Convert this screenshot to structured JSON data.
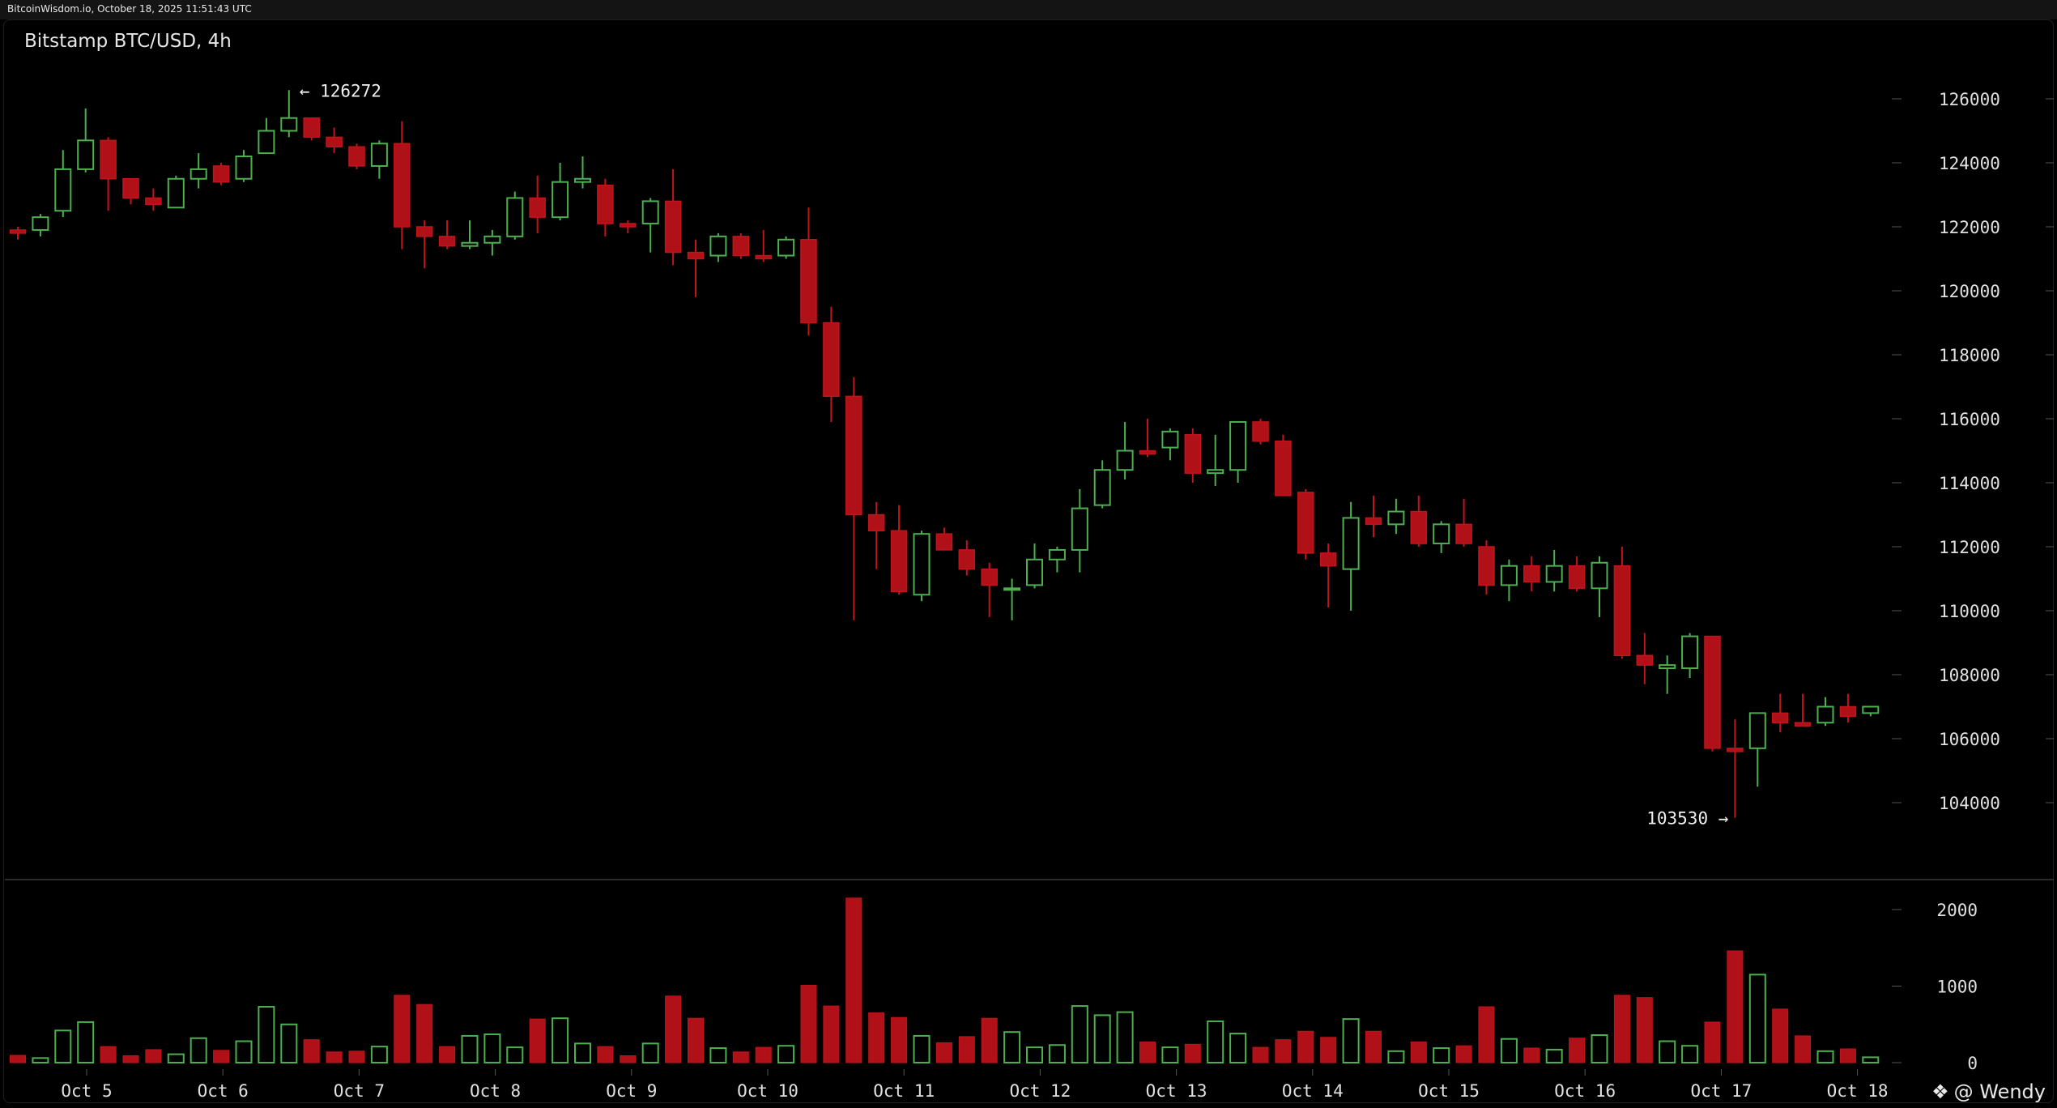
{
  "header": {
    "source_line": "BitcoinWisdom.io, October 18, 2025 11:51:43 UTC"
  },
  "chart_title": "Bitstamp BTC/USD, 4h",
  "watermark": {
    "text": "@ Wendy",
    "icon": "diamond-logo-icon"
  },
  "colors": {
    "up": "#4caf50",
    "down": "#c0151a",
    "down_fill": "#b01018",
    "grid": "#333333",
    "text": "#e0e0e0"
  },
  "chart_data": {
    "type": "candlestick",
    "title": "Bitstamp BTC/USD, 4h",
    "price_axis": {
      "ticks": [
        104000,
        106000,
        108000,
        110000,
        112000,
        114000,
        116000,
        118000,
        120000,
        122000,
        124000,
        126000
      ],
      "tick_labels": [
        "104000",
        "106000",
        "108000",
        "110000",
        "112000",
        "114000",
        "116000",
        "118000",
        "120000",
        "122000",
        "124000",
        "126000"
      ],
      "range": [
        102000,
        127500
      ]
    },
    "volume_axis": {
      "ticks": [
        0,
        1000,
        2000
      ],
      "tick_labels": [
        "0",
        "1000",
        "2000"
      ],
      "range": [
        0,
        2250
      ]
    },
    "x_labels": [
      "Oct 5",
      "Oct 6",
      "Oct 7",
      "Oct 8",
      "Oct 9",
      "Oct 10",
      "Oct 11",
      "Oct 12",
      "Oct 13",
      "Oct 14",
      "Oct 15",
      "Oct 16",
      "Oct 17",
      "Oct 18"
    ],
    "annotations": {
      "high": {
        "value": 126272,
        "text": "← 126272"
      },
      "low": {
        "value": 103530,
        "text": "103530 →"
      }
    },
    "candles": [
      [
        121900,
        122000,
        121600,
        121800,
        95
      ],
      [
        121900,
        122400,
        121700,
        122300,
        60
      ],
      [
        122500,
        124400,
        122300,
        123800,
        420
      ],
      [
        123800,
        125700,
        123700,
        124700,
        530
      ],
      [
        124700,
        124800,
        122500,
        123500,
        210
      ],
      [
        123500,
        123500,
        122700,
        122900,
        90
      ],
      [
        122900,
        123200,
        122500,
        122700,
        170
      ],
      [
        122600,
        123600,
        122600,
        123500,
        110
      ],
      [
        123500,
        124300,
        123200,
        123800,
        320
      ],
      [
        123900,
        124000,
        123300,
        123400,
        160
      ],
      [
        123500,
        124400,
        123400,
        124200,
        280
      ],
      [
        124300,
        125400,
        124300,
        125000,
        730
      ],
      [
        125000,
        126272,
        124800,
        125400,
        500
      ],
      [
        125400,
        125400,
        124700,
        124800,
        300
      ],
      [
        124800,
        125100,
        124300,
        124500,
        140
      ],
      [
        124500,
        124600,
        123800,
        123900,
        150
      ],
      [
        123900,
        124700,
        123500,
        124600,
        210
      ],
      [
        124600,
        125300,
        121300,
        122000,
        880
      ],
      [
        122000,
        122200,
        120700,
        121700,
        760
      ],
      [
        121700,
        122200,
        121300,
        121400,
        210
      ],
      [
        121400,
        122200,
        121300,
        121500,
        350
      ],
      [
        121500,
        121900,
        121100,
        121700,
        370
      ],
      [
        121700,
        123100,
        121600,
        122900,
        200
      ],
      [
        122900,
        123600,
        121800,
        122300,
        570
      ],
      [
        122300,
        124000,
        122200,
        123400,
        580
      ],
      [
        123400,
        124200,
        123200,
        123500,
        250
      ],
      [
        123300,
        123500,
        121700,
        122100,
        210
      ],
      [
        122100,
        122200,
        121800,
        122000,
        90
      ],
      [
        122100,
        122900,
        121200,
        122800,
        250
      ],
      [
        122800,
        123800,
        120800,
        121200,
        870
      ],
      [
        121200,
        121600,
        119800,
        121000,
        580
      ],
      [
        121100,
        121800,
        120900,
        121700,
        190
      ],
      [
        121700,
        121800,
        121000,
        121100,
        140
      ],
      [
        121100,
        121900,
        120900,
        121000,
        200
      ],
      [
        121100,
        121700,
        121000,
        121600,
        220
      ],
      [
        121600,
        122600,
        118600,
        119000,
        1010
      ],
      [
        119000,
        119500,
        115900,
        116700,
        740
      ],
      [
        116700,
        117300,
        109700,
        113000,
        2150
      ],
      [
        113000,
        113400,
        111300,
        112500,
        650
      ],
      [
        112500,
        113300,
        110500,
        110600,
        590
      ],
      [
        110500,
        112500,
        110300,
        112400,
        350
      ],
      [
        112400,
        112600,
        111900,
        111900,
        260
      ],
      [
        111900,
        112200,
        111100,
        111300,
        340
      ],
      [
        111300,
        111500,
        109800,
        110800,
        580
      ],
      [
        110700,
        111000,
        109700,
        110700,
        400
      ],
      [
        110800,
        112100,
        110700,
        111600,
        200
      ],
      [
        111600,
        112000,
        111200,
        111900,
        230
      ],
      [
        111900,
        113800,
        111200,
        113200,
        740
      ],
      [
        113300,
        114700,
        113200,
        114400,
        620
      ],
      [
        114400,
        115900,
        114100,
        115000,
        660
      ],
      [
        115000,
        116000,
        114800,
        114900,
        270
      ],
      [
        115100,
        115700,
        114700,
        115600,
        200
      ],
      [
        115500,
        115700,
        114000,
        114300,
        240
      ],
      [
        114300,
        115500,
        113900,
        114400,
        540
      ],
      [
        114400,
        115900,
        114000,
        115900,
        380
      ],
      [
        115900,
        116000,
        115200,
        115300,
        200
      ],
      [
        115300,
        115500,
        113600,
        113600,
        300
      ],
      [
        113700,
        113800,
        111600,
        111800,
        410
      ],
      [
        111800,
        112100,
        110100,
        111400,
        330
      ],
      [
        111300,
        113400,
        110000,
        112900,
        570
      ],
      [
        112900,
        113600,
        112300,
        112700,
        410
      ],
      [
        112700,
        113500,
        112400,
        113100,
        150
      ],
      [
        113100,
        113600,
        112000,
        112100,
        270
      ],
      [
        112100,
        112800,
        111800,
        112700,
        190
      ],
      [
        112700,
        113500,
        112000,
        112100,
        220
      ],
      [
        112000,
        112200,
        110500,
        110800,
        730
      ],
      [
        110800,
        111600,
        110300,
        111400,
        310
      ],
      [
        111400,
        111700,
        110600,
        110900,
        190
      ],
      [
        110900,
        111900,
        110600,
        111400,
        170
      ],
      [
        111400,
        111700,
        110600,
        110700,
        320
      ],
      [
        110700,
        111700,
        109800,
        111500,
        360
      ],
      [
        111400,
        112000,
        108500,
        108600,
        880
      ],
      [
        108600,
        109300,
        107700,
        108300,
        850
      ],
      [
        108200,
        108600,
        107400,
        108300,
        280
      ],
      [
        108200,
        109300,
        107900,
        109200,
        220
      ],
      [
        109200,
        109200,
        105600,
        105700,
        530
      ],
      [
        105700,
        106600,
        103530,
        105600,
        1460
      ],
      [
        105700,
        106800,
        104500,
        106800,
        1150
      ],
      [
        106800,
        107400,
        106200,
        106500,
        700
      ],
      [
        106500,
        107400,
        106400,
        106400,
        350
      ],
      [
        106500,
        107300,
        106400,
        107000,
        150
      ],
      [
        107000,
        107400,
        106500,
        106700,
        180
      ],
      [
        106800,
        107000,
        106700,
        107000,
        70
      ]
    ]
  }
}
